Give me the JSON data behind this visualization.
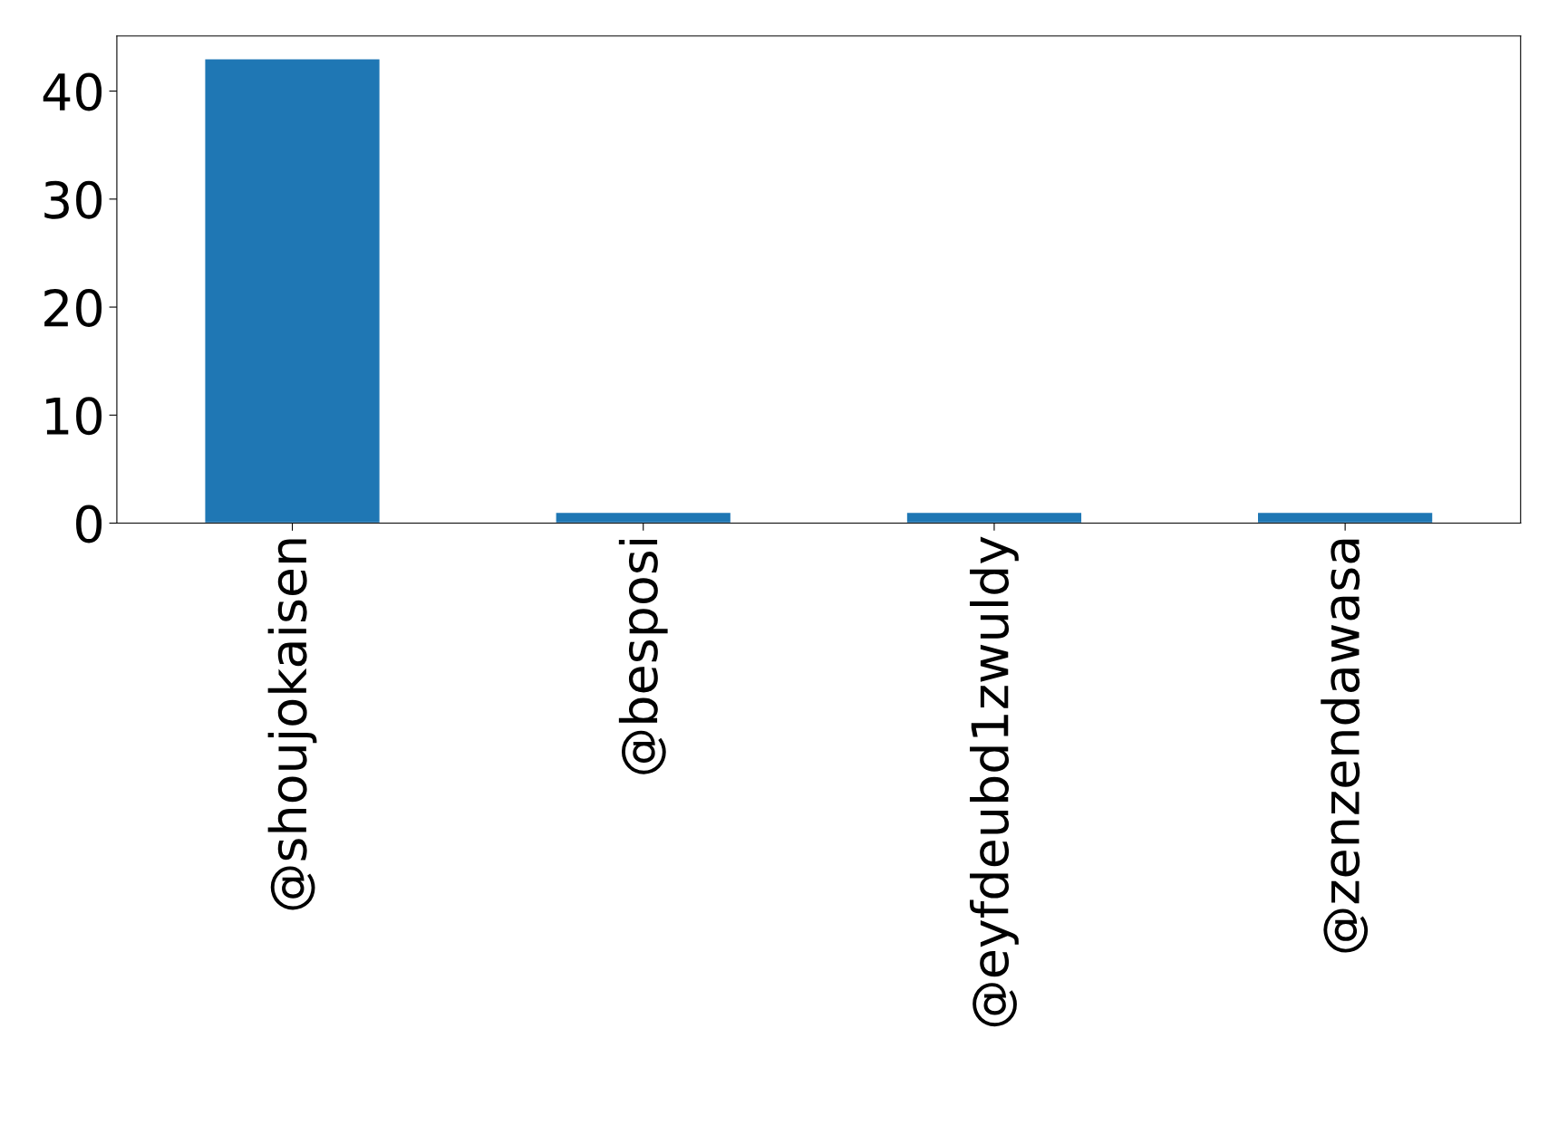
{
  "chart_data": {
    "type": "bar",
    "categories": [
      "@shoujokaisen",
      "@besposi",
      "@eyfdeubd1zwuldy",
      "@zenzendawasa"
    ],
    "values": [
      43,
      1,
      1,
      1
    ],
    "color": "#1f77b4",
    "ylim": [
      0,
      45.1
    ],
    "yticks": [
      0,
      10,
      20,
      30,
      40
    ],
    "grid": false
  }
}
